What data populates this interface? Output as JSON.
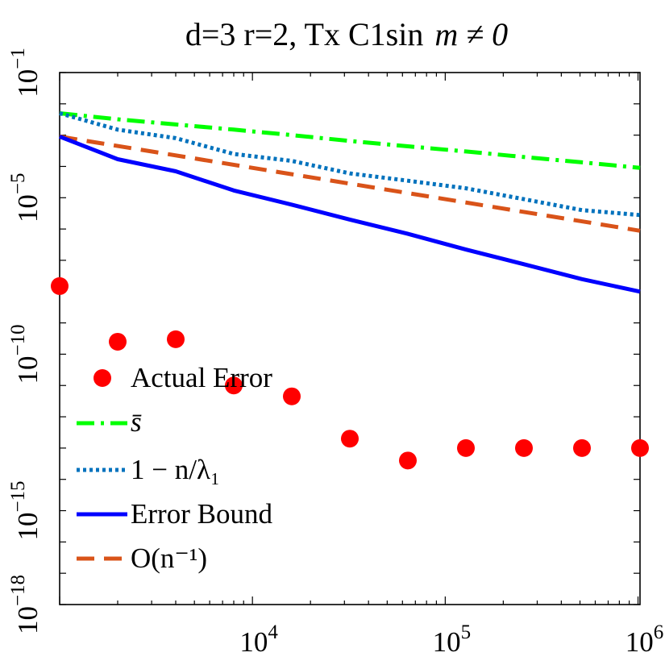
{
  "chart_data": {
    "type": "line",
    "title": "d=3 r=2, Tx C1sin",
    "title_math": "m ≠ 0",
    "xscale": "log",
    "yscale": "log",
    "xlim": [
      1000,
      1024000
    ],
    "ylim": [
      1e-18,
      0.1
    ],
    "xticks": [
      {
        "value": 10000,
        "base": "10",
        "exp": "4"
      },
      {
        "value": 100000,
        "base": "10",
        "exp": "5"
      },
      {
        "value": 1000000,
        "base": "10",
        "exp": "6"
      }
    ],
    "yticks": [
      {
        "value": 1e-18,
        "base": "10",
        "exp": "−18"
      },
      {
        "value": 1e-15,
        "base": "10",
        "exp": "−15"
      },
      {
        "value": 1e-10,
        "base": "10",
        "exp": "−10"
      },
      {
        "value": 1e-05,
        "base": "10",
        "exp": "−5"
      },
      {
        "value": 0.1,
        "base": "10",
        "exp": "−1"
      }
    ],
    "legend_position": "bottom-left",
    "series": [
      {
        "name": "Actual Error",
        "style": "markers",
        "color": "#ff0000",
        "x": [
          1000,
          2000,
          4000,
          8000,
          16000,
          32000,
          64000,
          128000,
          256000,
          512000,
          1024000
        ],
        "y": [
          1.5e-08,
          2.5e-10,
          3e-10,
          1e-11,
          4.5e-12,
          2e-13,
          4e-14,
          1e-13,
          1e-13,
          1e-13,
          1e-13
        ]
      },
      {
        "name": "s̄",
        "style": "dashdot",
        "color": "#00ff00",
        "x": [
          1000,
          2000,
          4000,
          8000,
          16000,
          32000,
          64000,
          128000,
          256000,
          512000,
          1024000
        ],
        "y": [
          0.005,
          0.0032,
          0.0022,
          0.0015,
          0.001,
          0.00065,
          0.00044,
          0.0003,
          0.0002,
          0.000135,
          9e-05
        ]
      },
      {
        "name": "1 − n/λ₁",
        "style": "dotted",
        "color": "#0072bd",
        "x": [
          1000,
          2000,
          4000,
          8000,
          16000,
          32000,
          64000,
          128000,
          256000,
          512000,
          1024000
        ],
        "y": [
          0.005,
          0.0015,
          0.0008,
          0.00025,
          0.00015,
          6e-05,
          3.5e-05,
          2e-05,
          9e-06,
          4e-06,
          2.8e-06
        ]
      },
      {
        "name": "Error Bound",
        "style": "solid",
        "color": "#0000ff",
        "x": [
          1000,
          2000,
          4000,
          8000,
          16000,
          32000,
          64000,
          128000,
          256000,
          512000,
          1024000
        ],
        "y": [
          0.0009,
          0.00017,
          7e-05,
          1.7e-05,
          6e-06,
          2e-06,
          7e-07,
          2.2e-07,
          7.5e-08,
          2.5e-08,
          1e-08
        ]
      },
      {
        "name": "O(n⁻¹)",
        "style": "dashed",
        "color": "#d95319",
        "x": [
          1000,
          1024000
        ],
        "y": [
          0.0009,
          8.8e-07
        ]
      }
    ]
  }
}
